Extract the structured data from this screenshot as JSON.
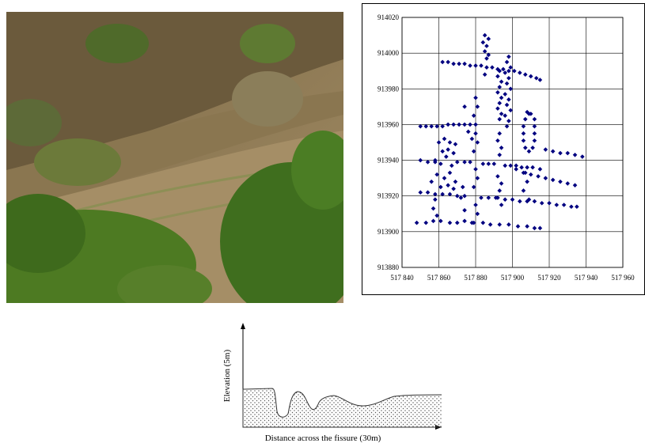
{
  "chart_data": {
    "type": "scatter",
    "color": "#000080",
    "grid": true,
    "xlim": [
      517840,
      517960
    ],
    "xticks": [
      {
        "value": 517840,
        "label": "517 840"
      },
      {
        "value": 517860,
        "label": "517 860"
      },
      {
        "value": 517880,
        "label": "517 880"
      },
      {
        "value": 517900,
        "label": "517 900"
      },
      {
        "value": 517920,
        "label": "517 920"
      },
      {
        "value": 517940,
        "label": "517 940"
      },
      {
        "value": 517960,
        "label": "517 960"
      }
    ],
    "ylim": [
      913880,
      914020
    ],
    "yticks": [
      913880,
      913900,
      913920,
      913940,
      913960,
      913980,
      914000,
      914020
    ],
    "x": [
      517862,
      517865,
      517868,
      517871,
      517874,
      517877,
      517880,
      517883,
      517886,
      517889,
      517892,
      517895,
      517898,
      517901,
      517904,
      517907,
      517910,
      517913,
      517915,
      517885,
      517887,
      517884,
      517886,
      517885,
      517887,
      517886,
      517885,
      517898,
      517897,
      517899,
      517896,
      517898,
      517897,
      517899,
      517896,
      517898,
      517897,
      517899,
      517896,
      517898,
      517897,
      517893,
      517892,
      517894,
      517893,
      517892,
      517894,
      517893,
      517892,
      517894,
      517893,
      517908,
      517910,
      517912,
      517912,
      517912,
      517912,
      517911,
      517909,
      517907,
      517906,
      517906,
      517906,
      517907,
      517909,
      517850,
      517853,
      517856,
      517859,
      517862,
      517865,
      517868,
      517871,
      517874,
      517877,
      517880,
      517880,
      517881,
      517879,
      517880,
      517881,
      517879,
      517880,
      517881,
      517879,
      517880,
      517881,
      517879,
      517860,
      517863,
      517866,
      517869,
      517862,
      517865,
      517868,
      517858,
      517861,
      517864,
      517867,
      517870,
      517859,
      517863,
      517866,
      517869,
      517861,
      517865,
      517868,
      517850,
      517854,
      517858,
      517874,
      517877,
      517884,
      517887,
      517890,
      517896,
      517899,
      517902,
      517905,
      517908,
      517911,
      517915,
      517918,
      517922,
      517926,
      517930,
      517934,
      517938,
      517902,
      517906,
      517910,
      517914,
      517918,
      517922,
      517926,
      517930,
      517934,
      517893,
      517892,
      517894,
      517893,
      517892,
      517894,
      517893,
      517892,
      517894,
      517850,
      517854,
      517858,
      517862,
      517866,
      517870,
      517874,
      517883,
      517887,
      517891,
      517896,
      517900,
      517904,
      517908,
      517912,
      517916,
      517920,
      517924,
      517928,
      517932,
      517935,
      517848,
      517853,
      517857,
      517861,
      517866,
      517870,
      517874,
      517878,
      517884,
      517888,
      517893,
      517898,
      517903,
      517908,
      517912,
      517915,
      517873,
      517872,
      517874,
      517858,
      517857,
      517859,
      517856,
      517907,
      517908,
      517906,
      517909,
      517874,
      517876,
      517878
    ],
    "values": [
      913995,
      913995,
      913994,
      913994,
      913994,
      913993,
      913993,
      913993,
      913992,
      913992,
      913991,
      913991,
      913990,
      913990,
      913989,
      913988,
      913987,
      913986,
      913985,
      914010,
      914008,
      914006,
      914004,
      914001,
      913999,
      913997,
      913988,
      913998,
      913995,
      913992,
      913989,
      913986,
      913983,
      913980,
      913977,
      913974,
      913971,
      913968,
      913965,
      913962,
      913959,
      913990,
      913987,
      913984,
      913981,
      913978,
      913975,
      913972,
      913969,
      913966,
      913963,
      913967,
      913966,
      913963,
      913959,
      913955,
      913951,
      913947,
      913945,
      913947,
      913951,
      913955,
      913959,
      913963,
      913966,
      913959,
      913959,
      913959,
      913959,
      913959,
      913960,
      913960,
      913960,
      913960,
      913960,
      913960,
      913975,
      913970,
      913965,
      913955,
      913950,
      913945,
      913935,
      913930,
      913925,
      913915,
      913910,
      913905,
      913950,
      913952,
      913950,
      913949,
      913945,
      913946,
      913944,
      913940,
      913938,
      913942,
      913937,
      913939,
      913932,
      913930,
      913933,
      913928,
      913925,
      913926,
      913924,
      913940,
      913939,
      913939,
      913939,
      913939,
      913938,
      913938,
      913938,
      913937,
      913937,
      913937,
      913936,
      913936,
      913936,
      913935,
      913946,
      913945,
      913944,
      913944,
      913943,
      913942,
      913935,
      913933,
      913932,
      913931,
      913930,
      913929,
      913928,
      913927,
      913926,
      913955,
      913951,
      913947,
      913943,
      913931,
      913927,
      913923,
      913919,
      913915,
      913922,
      913922,
      913921,
      913921,
      913921,
      913920,
      913920,
      913919,
      913919,
      913919,
      913918,
      913918,
      913917,
      913917,
      913917,
      913916,
      913916,
      913915,
      913915,
      913914,
      913914,
      913905,
      913905,
      913906,
      913906,
      913905,
      913905,
      913906,
      913905,
      913905,
      913904,
      913904,
      913904,
      913903,
      913903,
      913902,
      913902,
      913925,
      913919,
      913912,
      913918,
      913913,
      913909,
      913928,
      913933,
      913928,
      913923,
      913918,
      913970,
      913956,
      913952
    ]
  },
  "profile": {
    "y_label": "Elevation (5m)",
    "x_label": "Distance across the fissure (30m)"
  }
}
